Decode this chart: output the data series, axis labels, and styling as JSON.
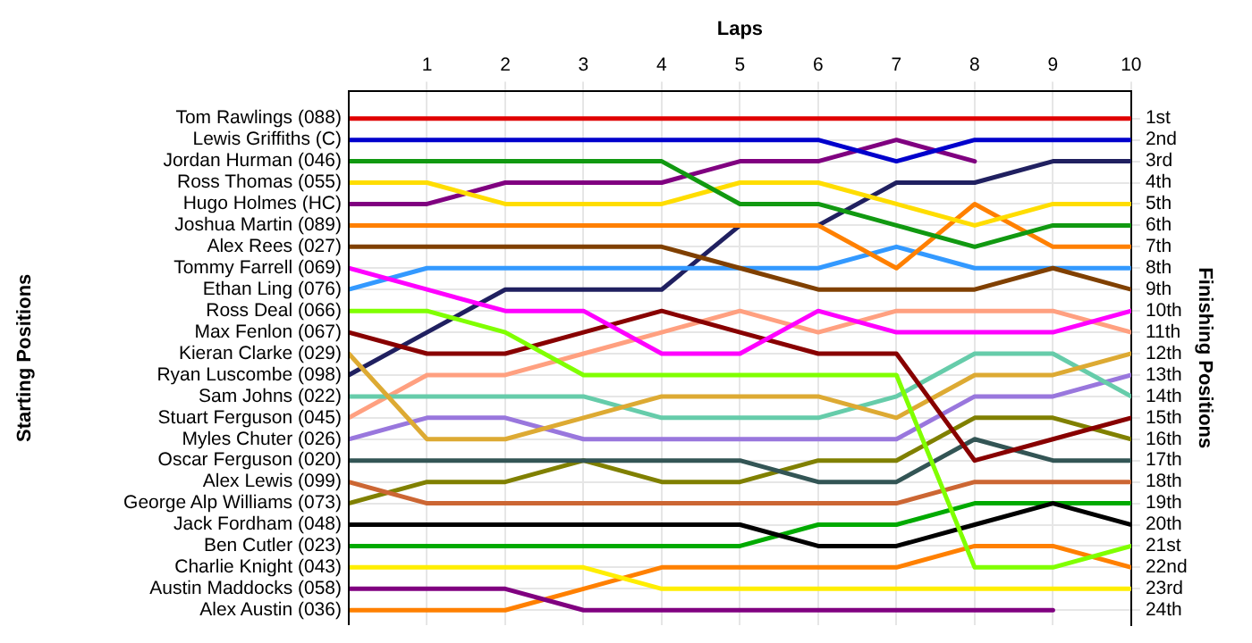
{
  "chart_data": {
    "type": "line",
    "xlabel": "Laps",
    "ylabel": "Finishing Positions",
    "annotations": [
      "Starting Positions"
    ],
    "x": [
      0,
      1,
      2,
      3,
      4,
      5,
      6,
      7,
      8,
      9,
      10
    ],
    "xlim": [
      0,
      10
    ],
    "xticks": [
      1,
      2,
      3,
      4,
      5,
      6,
      7,
      8,
      9,
      10
    ],
    "ylim": [
      24.7,
      -0.3
    ],
    "yticks": [
      {
        "value": 1,
        "label": "1st"
      },
      {
        "value": 2,
        "label": "2nd"
      },
      {
        "value": 3,
        "label": "3rd"
      },
      {
        "value": 4,
        "label": "4th"
      },
      {
        "value": 5,
        "label": "5th"
      },
      {
        "value": 6,
        "label": "6th"
      },
      {
        "value": 7,
        "label": "7th"
      },
      {
        "value": 8,
        "label": "8th"
      },
      {
        "value": 9,
        "label": "9th"
      },
      {
        "value": 10,
        "label": "10th"
      },
      {
        "value": 11,
        "label": "11th"
      },
      {
        "value": 12,
        "label": "12th"
      },
      {
        "value": 13,
        "label": "13th"
      },
      {
        "value": 14,
        "label": "14th"
      },
      {
        "value": 15,
        "label": "15th"
      },
      {
        "value": 16,
        "label": "16th"
      },
      {
        "value": 17,
        "label": "17th"
      },
      {
        "value": 18,
        "label": "18th"
      },
      {
        "value": 19,
        "label": "19th"
      },
      {
        "value": 20,
        "label": "20th"
      },
      {
        "value": 21,
        "label": "21st"
      },
      {
        "value": 22,
        "label": "22nd"
      },
      {
        "value": 23,
        "label": "23rd"
      },
      {
        "value": 24,
        "label": "24th"
      }
    ],
    "grid": true,
    "legend": false,
    "marker": "none",
    "line_style": "solid",
    "series": [
      {
        "name": "Tom Rawlings (088)",
        "color": "#e00000",
        "values": [
          1,
          1,
          1,
          1,
          1,
          1,
          1,
          1,
          1,
          1,
          1
        ]
      },
      {
        "name": "Lewis Griffiths (C)",
        "color": "#0000cc",
        "values": [
          2,
          2,
          2,
          2,
          2,
          2,
          2,
          3,
          2,
          2,
          2
        ]
      },
      {
        "name": "Jordan Hurman (046)",
        "color": "#119911",
        "values": [
          3,
          3,
          3,
          3,
          3,
          5,
          5,
          6,
          7,
          6,
          6
        ]
      },
      {
        "name": "Ross Thomas (055)",
        "color": "#ffdd00",
        "values": [
          4,
          4,
          5,
          5,
          5,
          4,
          4,
          5,
          6,
          5,
          5
        ]
      },
      {
        "name": "Hugo Holmes (HC)",
        "color": "#800080",
        "values": [
          5,
          5,
          4,
          4,
          4,
          3,
          3,
          2,
          3,
          null,
          null
        ]
      },
      {
        "name": "Joshua Martin (089)",
        "color": "#ff8000",
        "values": [
          6,
          6,
          6,
          6,
          6,
          6,
          6,
          8,
          5,
          7,
          7
        ]
      },
      {
        "name": "Alex Rees (027)",
        "color": "#804000",
        "values": [
          7,
          7,
          7,
          7,
          7,
          8,
          9,
          9,
          9,
          8,
          9
        ]
      },
      {
        "name": "Tommy Farrell (069)",
        "color": "#ff00ff",
        "values": [
          8,
          9,
          10,
          10,
          12,
          12,
          10,
          11,
          11,
          11,
          10
        ]
      },
      {
        "name": "Ethan Ling (076)",
        "color": "#3399ff",
        "values": [
          9,
          8,
          8,
          8,
          8,
          8,
          8,
          7,
          8,
          8,
          8
        ]
      },
      {
        "name": "Ross Deal (066)",
        "color": "#80ff00",
        "values": [
          10,
          10,
          11,
          13,
          13,
          13,
          13,
          13,
          22,
          22,
          21
        ]
      },
      {
        "name": "Max Fenlon (067)",
        "color": "#880000",
        "values": [
          11,
          12,
          12,
          11,
          10,
          11,
          12,
          12,
          17,
          16,
          15
        ]
      },
      {
        "name": "Kieran Clarke (029)",
        "color": "#ddaa33",
        "values": [
          12,
          16,
          16,
          15,
          14,
          14,
          14,
          15,
          13,
          13,
          12
        ]
      },
      {
        "name": "Ryan Luscombe (098)",
        "color": "#202060",
        "values": [
          13,
          11,
          9,
          9,
          9,
          6,
          6,
          4,
          4,
          3,
          3
        ]
      },
      {
        "name": "Sam Johns (022)",
        "color": "#66ccaa",
        "values": [
          14,
          14,
          14,
          14,
          15,
          15,
          15,
          14,
          12,
          12,
          14
        ]
      },
      {
        "name": "Stuart Ferguson (045)",
        "color": "#ffa080",
        "values": [
          15,
          13,
          13,
          12,
          11,
          10,
          11,
          10,
          10,
          10,
          11
        ]
      },
      {
        "name": "Myles Chuter (026)",
        "color": "#9977dd",
        "values": [
          16,
          15,
          15,
          16,
          16,
          16,
          16,
          16,
          14,
          14,
          13
        ]
      },
      {
        "name": "Oscar Ferguson (020)",
        "color": "#335555",
        "values": [
          17,
          17,
          17,
          17,
          17,
          17,
          18,
          18,
          16,
          17,
          17
        ]
      },
      {
        "name": "Alex Lewis (099)",
        "color": "#cc6633",
        "values": [
          18,
          19,
          19,
          19,
          19,
          19,
          19,
          19,
          18,
          18,
          18
        ]
      },
      {
        "name": "George Alp Williams (073)",
        "color": "#808000",
        "values": [
          19,
          18,
          18,
          17,
          18,
          18,
          17,
          17,
          15,
          15,
          16
        ]
      },
      {
        "name": "Jack Fordham (048)",
        "color": "#000000",
        "values": [
          20,
          20,
          20,
          20,
          20,
          20,
          21,
          21,
          20,
          19,
          20
        ]
      },
      {
        "name": "Ben Cutler (023)",
        "color": "#00aa00",
        "values": [
          21,
          21,
          21,
          21,
          21,
          21,
          20,
          20,
          19,
          19,
          19
        ]
      },
      {
        "name": "Charlie Knight (043)",
        "color": "#ffee00",
        "values": [
          22,
          22,
          22,
          22,
          23,
          23,
          23,
          23,
          23,
          23,
          23
        ]
      },
      {
        "name": "Austin Maddocks (058)",
        "color": "#800080",
        "values": [
          23,
          23,
          23,
          24,
          24,
          24,
          24,
          24,
          24,
          24,
          null
        ]
      },
      {
        "name": "Alex Austin (036)",
        "color": "#ff8000",
        "values": [
          24,
          24,
          24,
          23,
          22,
          22,
          22,
          22,
          21,
          21,
          22
        ]
      }
    ]
  }
}
